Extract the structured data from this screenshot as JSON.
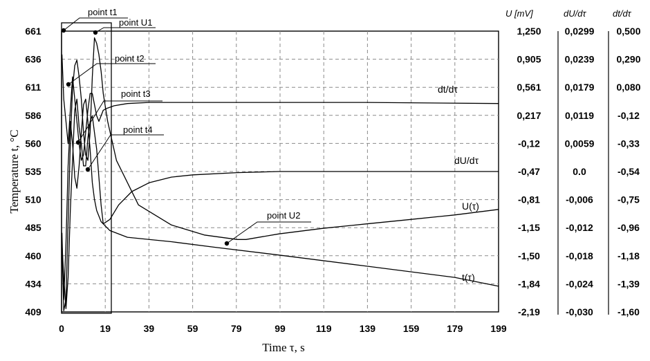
{
  "chart_data": {
    "type": "line",
    "xlabel": "Time τ, s",
    "ylabel": "Temperature t, °C",
    "x_ticks": [
      "0",
      "19",
      "39",
      "59",
      "79",
      "99",
      "119",
      "139",
      "159",
      "179",
      "199"
    ],
    "xlim": [
      0,
      199
    ],
    "ylim": [
      409,
      661
    ],
    "y_ticks": [
      "409",
      "434",
      "460",
      "485",
      "510",
      "535",
      "560",
      "586",
      "611",
      "636",
      "661"
    ],
    "right_axes": [
      {
        "title": "U [mV]",
        "ticks": [
          "1,250",
          "0,905",
          "0,561",
          "0,217",
          "-0,12",
          "-0,47",
          "-0,81",
          "-1,15",
          "-1,50",
          "-1,84",
          "-2,19"
        ]
      },
      {
        "title": "dU/dτ",
        "ticks": [
          "0,0299",
          "0,0239",
          "0,0179",
          "0,0119",
          "0,0059",
          "0.0",
          "-0,006",
          "-0,012",
          "-0,018",
          "-0,024",
          "-0,030"
        ]
      },
      {
        "title": "dt/dτ",
        "ticks": [
          "0,500",
          "0,290",
          "0,080",
          "-0,12",
          "-0,33",
          "-0,54",
          "-0,75",
          "-0,96",
          "-1,18",
          "-1,39",
          "-1,60"
        ]
      }
    ],
    "grid": true,
    "series": [
      {
        "name": "t(τ)",
        "points": [
          [
            0.2,
            470
          ],
          [
            1,
            440
          ],
          [
            2,
            412
          ],
          [
            3,
            440
          ],
          [
            4,
            500
          ],
          [
            5,
            545
          ],
          [
            6,
            590
          ],
          [
            7,
            600
          ],
          [
            8,
            575
          ],
          [
            9,
            560
          ],
          [
            10,
            540
          ],
          [
            11,
            540
          ],
          [
            12,
            565
          ],
          [
            13,
            580
          ],
          [
            14,
            585
          ],
          [
            15,
            570
          ],
          [
            16,
            555
          ],
          [
            17,
            530
          ],
          [
            18,
            505
          ],
          [
            19,
            488
          ],
          [
            22,
            482
          ],
          [
            30,
            476
          ],
          [
            50,
            472
          ],
          [
            70,
            467
          ],
          [
            99,
            460
          ],
          [
            139,
            450
          ],
          [
            179,
            440
          ],
          [
            199,
            432
          ]
        ]
      },
      {
        "name": "U(τ)",
        "points": [
          [
            0.2,
            470
          ],
          [
            1,
            410
          ],
          [
            2,
            420
          ],
          [
            3,
            490
          ],
          [
            4,
            560
          ],
          [
            5,
            610
          ],
          [
            6,
            630
          ],
          [
            7,
            635
          ],
          [
            8,
            620
          ],
          [
            9,
            600
          ],
          [
            10,
            570
          ],
          [
            11,
            550
          ],
          [
            12,
            545
          ],
          [
            13,
            570
          ],
          [
            14,
            620
          ],
          [
            15,
            655
          ],
          [
            16,
            650
          ],
          [
            17,
            640
          ],
          [
            18,
            625
          ],
          [
            19,
            605
          ],
          [
            21,
            580
          ],
          [
            25,
            545
          ],
          [
            35,
            505
          ],
          [
            50,
            487
          ],
          [
            65,
            478
          ],
          [
            80,
            474
          ],
          [
            84,
            474
          ],
          [
            99,
            479
          ],
          [
            119,
            484
          ],
          [
            139,
            488
          ],
          [
            159,
            492
          ],
          [
            179,
            496
          ],
          [
            199,
            501
          ]
        ]
      },
      {
        "name": "dU/dτ",
        "points": [
          [
            0.2,
            480
          ],
          [
            1,
            420
          ],
          [
            2,
            470
          ],
          [
            3,
            540
          ],
          [
            4,
            580
          ],
          [
            5,
            560
          ],
          [
            6,
            530
          ],
          [
            7,
            520
          ],
          [
            8,
            540
          ],
          [
            9,
            570
          ],
          [
            10,
            595
          ],
          [
            11,
            600
          ],
          [
            12,
            580
          ],
          [
            13,
            555
          ],
          [
            14,
            525
          ],
          [
            15,
            510
          ],
          [
            16,
            500
          ],
          [
            17,
            495
          ],
          [
            18,
            490
          ],
          [
            19,
            488
          ],
          [
            22,
            492
          ],
          [
            26,
            505
          ],
          [
            32,
            517
          ],
          [
            40,
            525
          ],
          [
            50,
            530
          ],
          [
            60,
            532
          ],
          [
            80,
            534
          ],
          [
            99,
            535
          ],
          [
            139,
            535
          ],
          [
            199,
            535
          ]
        ]
      },
      {
        "name": "dt/dτ",
        "points": [
          [
            0.2,
            640
          ],
          [
            1,
            600
          ],
          [
            2,
            580
          ],
          [
            3,
            560
          ],
          [
            4,
            590
          ],
          [
            5,
            620
          ],
          [
            6,
            600
          ],
          [
            7,
            580
          ],
          [
            8,
            560
          ],
          [
            9,
            545
          ],
          [
            10,
            550
          ],
          [
            11,
            570
          ],
          [
            12,
            590
          ],
          [
            13,
            605
          ],
          [
            14,
            605
          ],
          [
            15,
            595
          ],
          [
            16,
            585
          ],
          [
            17,
            580
          ],
          [
            18,
            585
          ],
          [
            19,
            590
          ],
          [
            21,
            592
          ],
          [
            24,
            594
          ],
          [
            30,
            596
          ],
          [
            40,
            597
          ],
          [
            60,
            597
          ],
          [
            99,
            597
          ],
          [
            139,
            597
          ],
          [
            199,
            596
          ]
        ]
      }
    ],
    "annotations": [
      "point t1",
      "point U1",
      "point t2",
      "point t3",
      "point t4",
      "point U2"
    ]
  }
}
